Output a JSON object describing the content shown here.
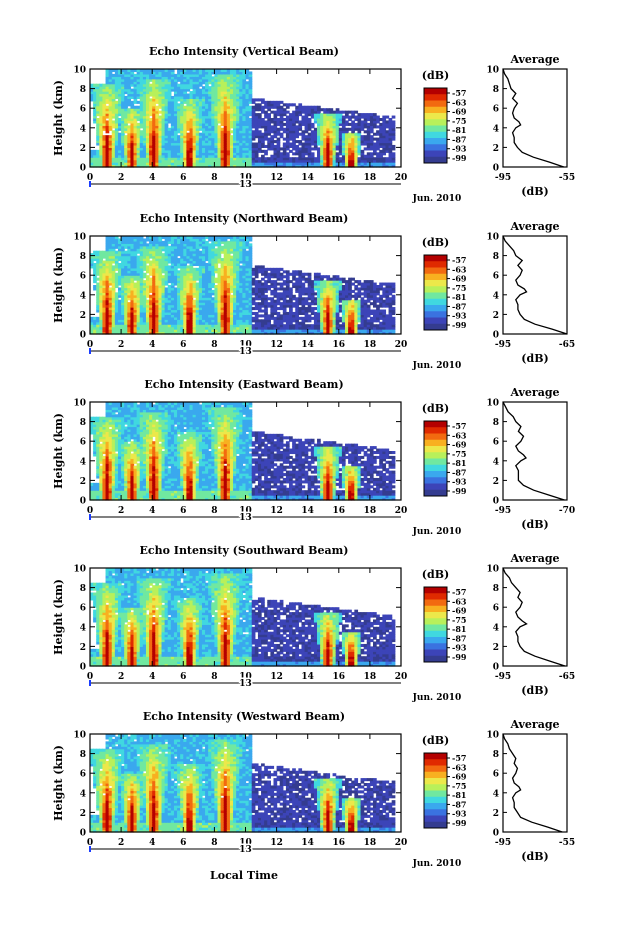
{
  "figure": {
    "date_label": "Jun. 2010",
    "day_label": "13",
    "xlabel": "Local Time"
  },
  "colorbar": {
    "unit": "(dB)",
    "ticks": [
      "-57",
      "-63",
      "-69",
      "-75",
      "-81",
      "-87",
      "-93",
      "-99"
    ],
    "colors": [
      "#b40000",
      "#e02a00",
      "#f26a10",
      "#f8b020",
      "#ece84a",
      "#b8f05a",
      "#70e8a0",
      "#40d8e0",
      "#3aa8ee",
      "#3a72e0",
      "#3c44b8",
      "#343c90"
    ]
  },
  "chart_data": [
    {
      "type": "heatmap",
      "title": "Echo Intensity (Vertical Beam)",
      "ylabel": "Height (km)",
      "xticks": [
        "0",
        "2",
        "4",
        "6",
        "8",
        "10",
        "12",
        "14",
        "16",
        "18",
        "20"
      ],
      "yticks": [
        "0",
        "2",
        "4",
        "6",
        "8",
        "10"
      ],
      "xlim": [
        0,
        20
      ],
      "ylim": [
        0,
        10
      ],
      "bursts": [
        {
          "t": 1.0,
          "top": 8.5
        },
        {
          "t": 2.6,
          "top": 6.0
        },
        {
          "t": 4.0,
          "top": 9.0
        },
        {
          "t": 6.3,
          "top": 7.0
        },
        {
          "t": 8.6,
          "top": 9.5
        },
        {
          "t": 15.2,
          "top": 5.5
        },
        {
          "t": 16.7,
          "top": 3.5
        }
      ],
      "profile": {
        "title": "Average",
        "xlabel": "(dB)",
        "xticks": [
          "-95",
          "-55"
        ],
        "xlim": [
          -95,
          -55
        ],
        "ylim": [
          0,
          10
        ],
        "heights": [
          0,
          0.5,
          1,
          1.5,
          2,
          2.5,
          3,
          3.5,
          4,
          4.3,
          4.6,
          5,
          5.5,
          6,
          6.5,
          7,
          7.5,
          8,
          8.5,
          9,
          9.5,
          10
        ],
        "values": [
          -57,
          -66,
          -76,
          -83,
          -86,
          -88,
          -88,
          -89,
          -87,
          -84,
          -85,
          -88,
          -89,
          -88,
          -86,
          -89,
          -87,
          -90,
          -91,
          -92,
          -94,
          -95
        ]
      }
    },
    {
      "type": "heatmap",
      "title": "Echo Intensity (Northward Beam)",
      "ylabel": "Height (km)",
      "xticks": [
        "0",
        "2",
        "4",
        "6",
        "8",
        "10",
        "12",
        "14",
        "16",
        "18",
        "20"
      ],
      "yticks": [
        "0",
        "2",
        "4",
        "6",
        "8",
        "10"
      ],
      "xlim": [
        0,
        20
      ],
      "ylim": [
        0,
        10
      ],
      "bursts": [
        {
          "t": 1.0,
          "top": 8.5
        },
        {
          "t": 2.6,
          "top": 6.0
        },
        {
          "t": 4.0,
          "top": 9.0
        },
        {
          "t": 6.3,
          "top": 7.0
        },
        {
          "t": 8.6,
          "top": 9.5
        },
        {
          "t": 15.2,
          "top": 5.5
        },
        {
          "t": 16.7,
          "top": 3.5
        }
      ],
      "profile": {
        "title": "Average",
        "xlabel": "(dB)",
        "xticks": [
          "-95",
          "-65"
        ],
        "xlim": [
          -95,
          -65
        ],
        "ylim": [
          0,
          10
        ],
        "heights": [
          0,
          0.5,
          1,
          1.5,
          2,
          2.5,
          3,
          3.5,
          4,
          4.3,
          4.6,
          5,
          5.5,
          6,
          6.5,
          7,
          7.5,
          8,
          8.5,
          9,
          9.5,
          10
        ],
        "values": [
          -65,
          -72,
          -80,
          -85,
          -87,
          -88,
          -88,
          -89,
          -87,
          -84,
          -85,
          -88,
          -89,
          -87,
          -86,
          -88,
          -86,
          -89,
          -90,
          -92,
          -94,
          -95
        ]
      }
    },
    {
      "type": "heatmap",
      "title": "Echo Intensity (Eastward Beam)",
      "ylabel": "Height (km)",
      "xticks": [
        "0",
        "2",
        "4",
        "6",
        "8",
        "10",
        "12",
        "14",
        "16",
        "18",
        "20"
      ],
      "yticks": [
        "0",
        "2",
        "4",
        "6",
        "8",
        "10"
      ],
      "xlim": [
        0,
        20
      ],
      "ylim": [
        0,
        10
      ],
      "bursts": [
        {
          "t": 1.0,
          "top": 8.5
        },
        {
          "t": 2.6,
          "top": 6.0
        },
        {
          "t": 4.0,
          "top": 9.0
        },
        {
          "t": 6.3,
          "top": 7.0
        },
        {
          "t": 8.6,
          "top": 9.5
        },
        {
          "t": 15.2,
          "top": 5.5
        },
        {
          "t": 16.7,
          "top": 3.5
        }
      ],
      "profile": {
        "title": "Average",
        "xlabel": "(dB)",
        "xticks": [
          "-95",
          "-70"
        ],
        "xlim": [
          -95,
          -70
        ],
        "ylim": [
          0,
          10
        ],
        "heights": [
          0,
          0.5,
          1,
          1.5,
          2,
          2.5,
          3,
          3.5,
          4,
          4.3,
          4.6,
          5,
          5.5,
          6,
          6.5,
          7,
          7.5,
          8,
          8.5,
          9,
          9.5,
          10
        ],
        "values": [
          -71,
          -77,
          -83,
          -87,
          -89,
          -89,
          -89,
          -90,
          -88,
          -86,
          -87,
          -89,
          -90,
          -88,
          -87,
          -89,
          -88,
          -90,
          -91,
          -93,
          -94,
          -95
        ]
      }
    },
    {
      "type": "heatmap",
      "title": "Echo Intensity (Southward Beam)",
      "ylabel": "Height (km)",
      "xticks": [
        "0",
        "2",
        "4",
        "6",
        "8",
        "10",
        "12",
        "14",
        "16",
        "18",
        "20"
      ],
      "yticks": [
        "0",
        "2",
        "4",
        "6",
        "8",
        "10"
      ],
      "xlim": [
        0,
        20
      ],
      "ylim": [
        0,
        10
      ],
      "bursts": [
        {
          "t": 1.0,
          "top": 8.5
        },
        {
          "t": 2.6,
          "top": 6.0
        },
        {
          "t": 4.0,
          "top": 9.0
        },
        {
          "t": 6.3,
          "top": 7.0
        },
        {
          "t": 8.6,
          "top": 9.5
        },
        {
          "t": 15.2,
          "top": 5.5
        },
        {
          "t": 16.7,
          "top": 3.5
        }
      ],
      "profile": {
        "title": "Average",
        "xlabel": "(dB)",
        "xticks": [
          "-95",
          "-65"
        ],
        "xlim": [
          -95,
          -65
        ],
        "ylim": [
          0,
          10
        ],
        "heights": [
          0,
          0.5,
          1,
          1.5,
          2,
          2.5,
          3,
          3.5,
          4,
          4.3,
          4.6,
          5,
          5.5,
          6,
          6.5,
          7,
          7.5,
          8,
          8.5,
          9,
          9.5,
          10
        ],
        "values": [
          -66,
          -73,
          -80,
          -85,
          -87,
          -88,
          -88,
          -89,
          -87,
          -84,
          -86,
          -88,
          -89,
          -87,
          -86,
          -88,
          -87,
          -89,
          -91,
          -92,
          -94,
          -95
        ]
      }
    },
    {
      "type": "heatmap",
      "title": "Echo Intensity (Westward Beam)",
      "ylabel": "Height (km)",
      "xticks": [
        "0",
        "2",
        "4",
        "6",
        "8",
        "10",
        "12",
        "14",
        "16",
        "18",
        "20"
      ],
      "yticks": [
        "0",
        "2",
        "4",
        "6",
        "8",
        "10"
      ],
      "xlim": [
        0,
        20
      ],
      "ylim": [
        0,
        10
      ],
      "bursts": [
        {
          "t": 1.0,
          "top": 8.5
        },
        {
          "t": 2.6,
          "top": 6.0
        },
        {
          "t": 4.0,
          "top": 9.0
        },
        {
          "t": 6.3,
          "top": 7.0
        },
        {
          "t": 8.6,
          "top": 9.5
        },
        {
          "t": 15.2,
          "top": 5.5
        },
        {
          "t": 16.7,
          "top": 3.5
        }
      ],
      "profile": {
        "title": "Average",
        "xlabel": "(dB)",
        "xticks": [
          "-95",
          "-55"
        ],
        "xlim": [
          -95,
          -55
        ],
        "ylim": [
          0,
          10
        ],
        "heights": [
          0,
          0.5,
          1,
          1.5,
          2,
          2.5,
          3,
          3.5,
          4,
          4.3,
          4.6,
          5,
          5.5,
          6,
          6.5,
          7,
          7.5,
          8,
          8.5,
          9,
          9.5,
          10
        ],
        "values": [
          -58,
          -67,
          -77,
          -84,
          -86,
          -88,
          -88,
          -89,
          -87,
          -84,
          -85,
          -88,
          -89,
          -87,
          -86,
          -88,
          -87,
          -89,
          -91,
          -92,
          -94,
          -95
        ]
      }
    }
  ]
}
